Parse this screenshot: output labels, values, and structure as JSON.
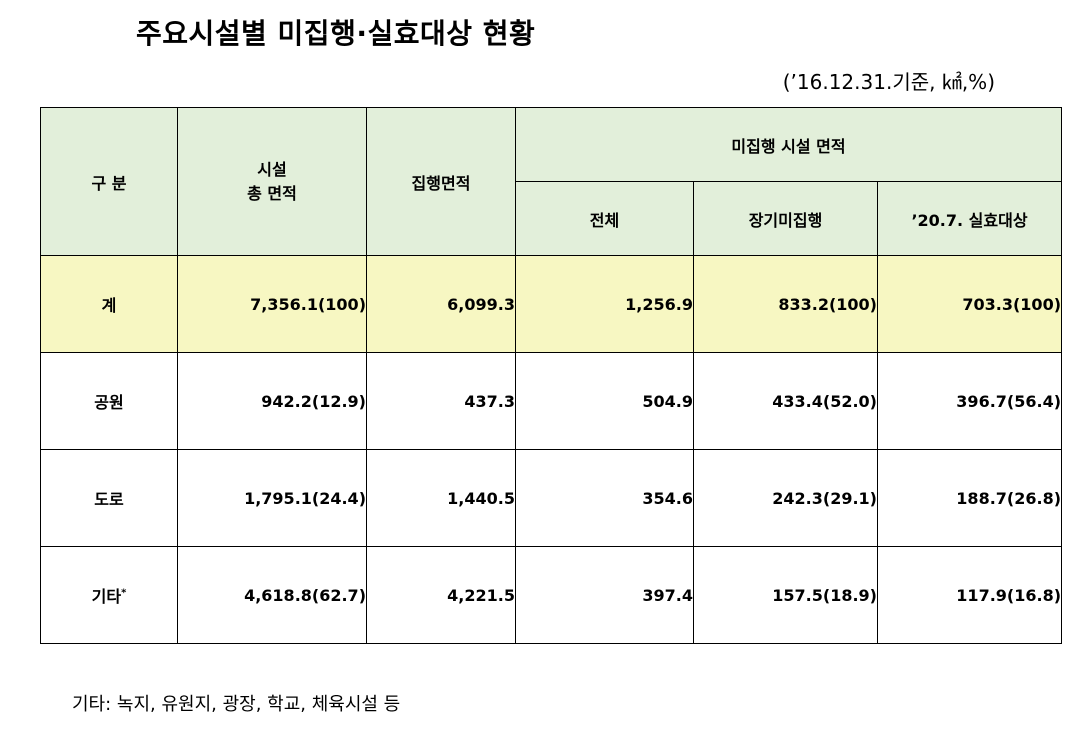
{
  "title": "주요시설별 미집행·실효대상 현황",
  "unit": "(’16.12.31.기준, ㎢,%)",
  "headers": {
    "category": "구 분",
    "total_area_line1": "시설",
    "total_area_line2": "총 면적",
    "executed_area": "집행면적",
    "unexecuted_group": "미집행 시설 면적",
    "all": "전체",
    "long_term": "장기미집행",
    "expiry_target": "’20.7. 실효대상"
  },
  "rows": [
    {
      "label": "계",
      "total_area": "7,356.1(100)",
      "executed": "6,099.3",
      "all": "1,256.9",
      "long_term": "833.2(100)",
      "expiry": "703.3(100)"
    },
    {
      "label": "공원",
      "total_area": "942.2(12.9)",
      "executed": "437.3",
      "all": "504.9",
      "long_term": "433.4(52.0)",
      "expiry": "396.7(56.4)"
    },
    {
      "label": "도로",
      "total_area": "1,795.1(24.4)",
      "executed": "1,440.5",
      "all": "354.6",
      "long_term": "242.3(29.1)",
      "expiry": "188.7(26.8)"
    },
    {
      "label": "기타",
      "label_mark": "*",
      "total_area": "4,618.8(62.7)",
      "executed": "4,221.5",
      "all": "397.4",
      "long_term": "157.5(18.9)",
      "expiry": "117.9(16.8)"
    }
  ],
  "footnote": "기타: 녹지, 유원지, 광장, 학교, 체육시설 등",
  "colors": {
    "header_bg": "#e2efda",
    "total_row_bg": "#f7f7c2"
  }
}
